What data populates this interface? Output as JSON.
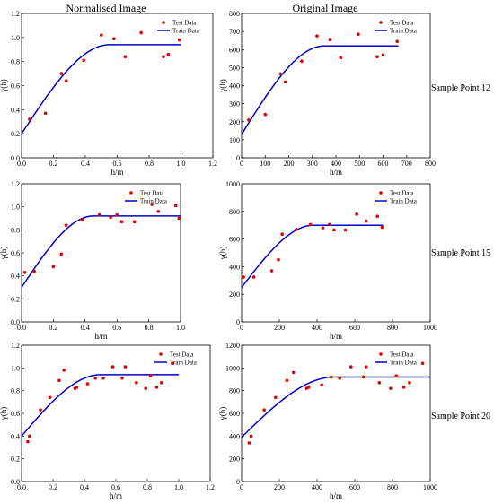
{
  "columns": [
    "Normalised Image",
    "Original Image"
  ],
  "rows": [
    "Sample Point 12",
    "Sample Point 15",
    "Sample Point 20"
  ],
  "legend": {
    "test": "Test Data",
    "train": "Train Data"
  },
  "colors": {
    "test": "#e00000",
    "train": "#0000cc"
  },
  "chart_data": [
    {
      "type": "scatter",
      "panel": "Sample Point 12 - Normalised Image",
      "xlabel": "h/m",
      "ylabel": "γ(h)",
      "xlim": [
        0,
        1.2
      ],
      "ylim": [
        0,
        1.2
      ],
      "xticks": [
        0,
        0.2,
        0.4,
        0.6,
        0.8,
        1.0,
        1.2
      ],
      "yticks": [
        0,
        0.2,
        0.4,
        0.6,
        0.8,
        1.0,
        1.2
      ],
      "tickFmt": 1,
      "series": [
        {
          "name": "Test Data",
          "x": [
            0.05,
            0.15,
            0.25,
            0.28,
            0.39,
            0.5,
            0.58,
            0.65,
            0.75,
            0.89,
            0.92,
            0.99
          ],
          "y": [
            0.32,
            0.37,
            0.7,
            0.64,
            0.81,
            1.02,
            0.99,
            0.84,
            1.04,
            0.84,
            0.86,
            0.98
          ]
        },
        {
          "name": "Train Data",
          "nugget": 0.2,
          "sill": 0.94,
          "range": 0.55,
          "xmax": 1.0
        }
      ]
    },
    {
      "type": "scatter",
      "panel": "Sample Point 12 - Original Image",
      "xlabel": "h/m",
      "ylabel": "γ(h)",
      "xlim": [
        0,
        800
      ],
      "ylim": [
        0,
        800
      ],
      "xticks": [
        0,
        100,
        200,
        300,
        400,
        500,
        600,
        700,
        800
      ],
      "yticks": [
        0,
        100,
        200,
        300,
        400,
        500,
        600,
        700,
        800
      ],
      "tickFmt": 0,
      "series": [
        {
          "name": "Test Data",
          "x": [
            30,
            100,
            165,
            185,
            255,
            320,
            375,
            420,
            495,
            575,
            600,
            660
          ],
          "y": [
            210,
            240,
            465,
            420,
            535,
            675,
            655,
            555,
            685,
            560,
            570,
            645
          ]
        },
        {
          "name": "Train Data",
          "nugget": 130,
          "sill": 620,
          "range": 350,
          "xmax": 665
        }
      ]
    },
    {
      "type": "scatter",
      "panel": "Sample Point 15 - Normalised Image",
      "xlabel": "h/m",
      "ylabel": "γ(h)",
      "xlim": [
        0,
        1.0
      ],
      "ylim": [
        0,
        1.2
      ],
      "xticks": [
        0,
        0.2,
        0.4,
        0.6,
        0.8,
        1.0
      ],
      "yticks": [
        0,
        0.2,
        0.4,
        0.6,
        0.8,
        1.0,
        1.2
      ],
      "tickFmt": 1,
      "series": [
        {
          "name": "Test Data",
          "x": [
            0.02,
            0.08,
            0.2,
            0.25,
            0.28,
            0.38,
            0.49,
            0.56,
            0.6,
            0.63,
            0.71,
            0.82,
            0.86,
            0.97,
            0.99
          ],
          "y": [
            0.43,
            0.44,
            0.48,
            0.59,
            0.84,
            0.89,
            0.93,
            0.91,
            0.93,
            0.87,
            0.87,
            1.02,
            0.96,
            1.01,
            0.9
          ]
        },
        {
          "name": "Train Data",
          "nugget": 0.3,
          "sill": 0.92,
          "range": 0.45,
          "xmax": 1.0
        }
      ]
    },
    {
      "type": "scatter",
      "panel": "Sample Point 15 - Original Image",
      "xlabel": "h/m",
      "ylabel": "γ(h)",
      "xlim": [
        0,
        1000
      ],
      "ylim": [
        0,
        1000
      ],
      "xticks": [
        0,
        200,
        400,
        600,
        800,
        1000
      ],
      "yticks": [
        0,
        200,
        400,
        600,
        800,
        1000
      ],
      "tickFmt": 0,
      "series": [
        {
          "name": "Test Data",
          "x": [
            10,
            65,
            160,
            195,
            215,
            290,
            365,
            430,
            465,
            490,
            550,
            610,
            660,
            720,
            745
          ],
          "y": [
            325,
            325,
            370,
            450,
            635,
            670,
            705,
            680,
            705,
            665,
            665,
            780,
            730,
            765,
            685
          ]
        },
        {
          "name": "Train Data",
          "nugget": 250,
          "sill": 700,
          "range": 380,
          "xmax": 750
        }
      ]
    },
    {
      "type": "scatter",
      "panel": "Sample Point 20 - Normalised Image",
      "xlabel": "h/m",
      "ylabel": "γ(h)",
      "xlim": [
        0,
        1.2
      ],
      "ylim": [
        0,
        1.2
      ],
      "xticks": [
        0,
        0.2,
        0.4,
        0.6,
        0.8,
        1.0,
        1.2
      ],
      "yticks": [
        0,
        0.2,
        0.4,
        0.6,
        0.8,
        1.0,
        1.2
      ],
      "tickFmt": 1,
      "series": [
        {
          "name": "Test Data",
          "x": [
            0.04,
            0.05,
            0.12,
            0.18,
            0.24,
            0.27,
            0.34,
            0.35,
            0.42,
            0.47,
            0.52,
            0.58,
            0.64,
            0.66,
            0.73,
            0.79,
            0.82,
            0.86,
            0.89,
            0.96
          ],
          "y": [
            0.35,
            0.4,
            0.63,
            0.74,
            0.89,
            0.98,
            0.82,
            0.83,
            0.86,
            0.91,
            0.91,
            1.01,
            0.91,
            1.01,
            0.87,
            0.82,
            0.93,
            0.83,
            0.87,
            1.04
          ]
        },
        {
          "name": "Train Data",
          "nugget": 0.4,
          "sill": 0.94,
          "range": 0.5,
          "xmax": 1.0
        }
      ]
    },
    {
      "type": "scatter",
      "panel": "Sample Point 20 - Original Image",
      "xlabel": "h/m",
      "ylabel": "γ(h)",
      "xlim": [
        0,
        1000
      ],
      "ylim": [
        0,
        1200
      ],
      "xticks": [
        0,
        200,
        400,
        600,
        800,
        1000
      ],
      "yticks": [
        0,
        200,
        400,
        600,
        800,
        1000,
        1200
      ],
      "tickFmt": 0,
      "series": [
        {
          "name": "Test Data",
          "x": [
            40,
            50,
            120,
            180,
            240,
            275,
            345,
            355,
            425,
            475,
            520,
            580,
            645,
            660,
            730,
            790,
            820,
            860,
            890,
            960
          ],
          "y": [
            340,
            400,
            630,
            740,
            890,
            960,
            820,
            830,
            850,
            920,
            910,
            1010,
            920,
            1010,
            870,
            820,
            930,
            830,
            870,
            1040
          ]
        },
        {
          "name": "Train Data",
          "nugget": 390,
          "sill": 920,
          "range": 490,
          "xmax": 1000
        }
      ]
    }
  ]
}
